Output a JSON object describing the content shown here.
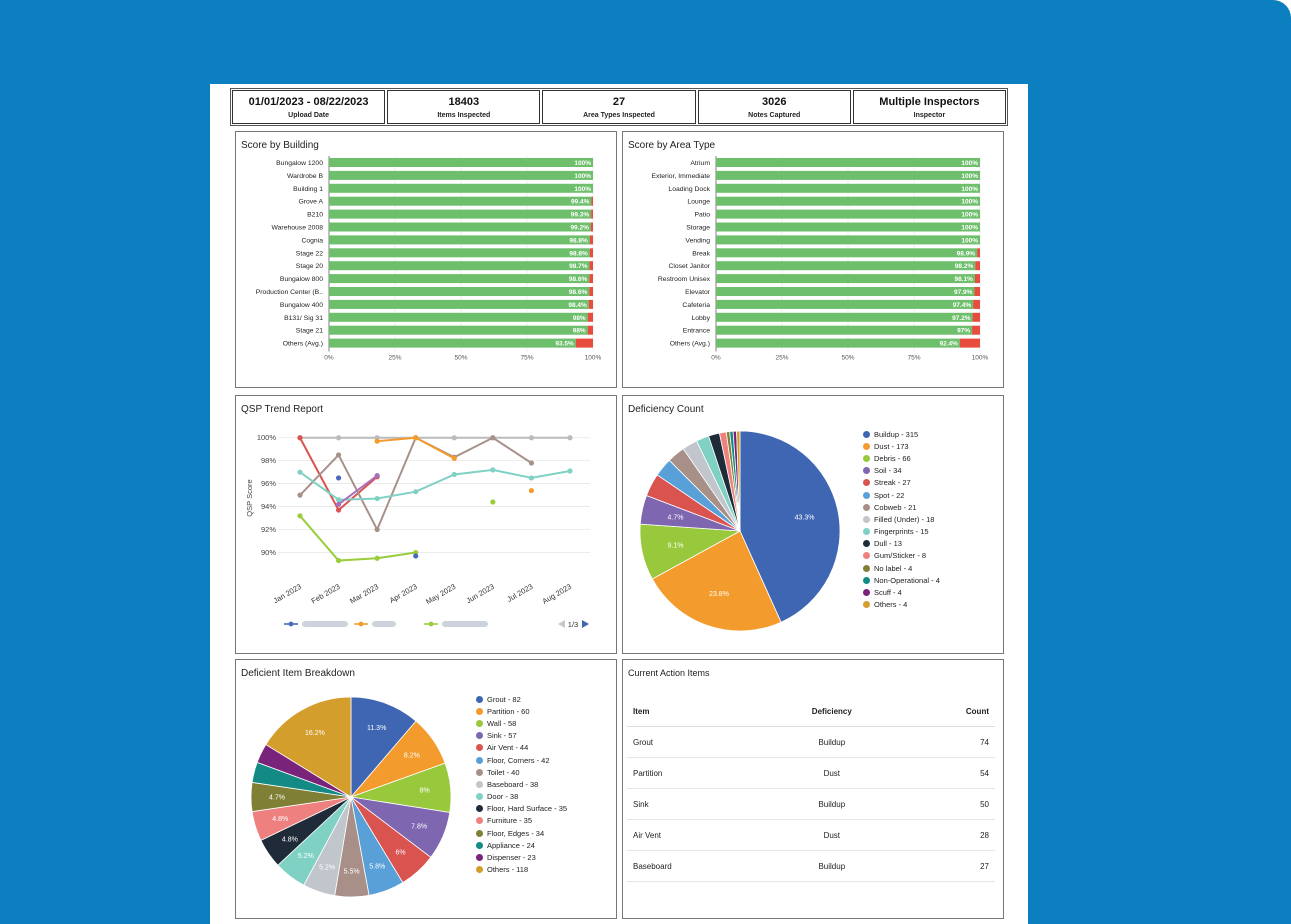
{
  "kpis": [
    {
      "value": "01/01/2023 - 08/22/2023",
      "label": "Upload Date"
    },
    {
      "value": "18403",
      "label": "Items Inspected"
    },
    {
      "value": "27",
      "label": "Area Types Inspected"
    },
    {
      "value": "3026",
      "label": "Notes Captured"
    },
    {
      "value": "Multiple Inspectors",
      "label": "Inspector"
    }
  ],
  "panels": {
    "building": "Score by Building",
    "area": "Score by Area Type",
    "trend": "QSP Trend Report",
    "deficiency": "Deficiency Count",
    "item": "Deficient Item Breakdown",
    "actions": "Current Action Items"
  },
  "colors": {
    "good": "#6dbf6b",
    "bad": "#e74c3c",
    "background": "#0b7fbf"
  },
  "pager": {
    "text": "1/3"
  },
  "chart_data": [
    {
      "type": "bar",
      "title": "Score by Building",
      "categories": [
        "Bungalow 1200",
        "Wardrobe B",
        "Building 1",
        "Grove A",
        "B210",
        "Warehouse 2008",
        "Cognia",
        "Stage 22",
        "Stage 20",
        "Bungalow 800",
        "Production Center (B..",
        "Bungalow 400",
        "B131/ Sig 31",
        "Stage 21",
        "Others (Avg.)"
      ],
      "values": [
        100,
        100,
        100,
        99.4,
        99.3,
        99.2,
        98.8,
        98.8,
        98.7,
        98.6,
        98.6,
        98.4,
        98,
        98,
        93.5
      ],
      "labels": [
        "100%",
        "100%",
        "100%",
        "99.4%",
        "99.3%",
        "99.2%",
        "98.8%",
        "98.8%",
        "98.7%",
        "98.6%",
        "98.6%",
        "98.4%",
        "98%",
        "98%",
        "93.5%"
      ],
      "xticks": [
        "0%",
        "25%",
        "50%",
        "75%",
        "100%"
      ],
      "xlim": [
        0,
        100
      ]
    },
    {
      "type": "bar",
      "title": "Score by Area Type",
      "categories": [
        "Atrium",
        "Exterior, Immediate",
        "Loading Dock",
        "Lounge",
        "Patio",
        "Storage",
        "Vending",
        "Break",
        "Closet Janitor",
        "Restroom Unisex",
        "Elevator",
        "Cafeteria",
        "Lobby",
        "Entrance",
        "Others (Avg.)"
      ],
      "values": [
        100,
        100,
        100,
        100,
        100,
        100,
        100,
        98.9,
        98.2,
        98.1,
        97.9,
        97.4,
        97.2,
        97,
        92.4
      ],
      "labels": [
        "100%",
        "100%",
        "100%",
        "100%",
        "100%",
        "100%",
        "100%",
        "98.9%",
        "98.2%",
        "98.1%",
        "97.9%",
        "97.4%",
        "97.2%",
        "97%",
        "92.4%"
      ],
      "xticks": [
        "0%",
        "25%",
        "50%",
        "75%",
        "100%"
      ],
      "xlim": [
        0,
        100
      ]
    },
    {
      "type": "line",
      "title": "QSP Trend Report",
      "ylabel": "QSP Score",
      "categories": [
        "Jan 2023",
        "Feb 2023",
        "Mar 2023",
        "Apr 2023",
        "May 2023",
        "Jun 2023",
        "Jul 2023",
        "Aug 2023"
      ],
      "yticks": [
        "100%",
        "98%",
        "96%",
        "94%",
        "92%",
        "90%"
      ],
      "ylim": [
        89,
        100.5
      ],
      "series": [
        {
          "color": "#bbbbbb",
          "values": [
            100,
            100,
            100,
            100,
            100,
            100,
            100,
            100
          ]
        },
        {
          "color": "#d9534f",
          "values": [
            100,
            93.7,
            96.6,
            null,
            null,
            null,
            null,
            null
          ]
        },
        {
          "color": "#a8918a",
          "values": [
            95,
            98.5,
            92,
            100,
            98.3,
            100,
            97.8,
            null
          ]
        },
        {
          "color": "#7fd1c4",
          "values": [
            97,
            94.6,
            94.7,
            95.3,
            96.8,
            97.2,
            96.5,
            97.1
          ]
        },
        {
          "color": "#f39c2d",
          "values": [
            null,
            null,
            99.7,
            100,
            98.2,
            null,
            95.4,
            null
          ]
        },
        {
          "color": "#9acd3d",
          "values": [
            93.2,
            89.3,
            89.5,
            90,
            null,
            94.4,
            null,
            null
          ]
        },
        {
          "color": "#4a69bd",
          "values": [
            null,
            96.5,
            null,
            89.7,
            null,
            null,
            null,
            null
          ]
        },
        {
          "color": "#a86fbd",
          "values": [
            null,
            94.2,
            96.7,
            null,
            null,
            null,
            null,
            null
          ]
        }
      ]
    },
    {
      "type": "pie",
      "title": "Deficiency Count",
      "categories": [
        "Buildup - 315",
        "Dust - 173",
        "Debris - 66",
        "Soil - 34",
        "Streak - 27",
        "Spot - 22",
        "Cobweb - 21",
        "Filled (Under) - 18",
        "Fingerprints - 15",
        "Dull - 13",
        "Gum/Sticker - 8",
        "No label - 4",
        "Non-Operational - 4",
        "Scuff - 4",
        "Others - 4"
      ],
      "values": [
        315,
        173,
        66,
        34,
        27,
        22,
        21,
        18,
        15,
        13,
        8,
        4,
        4,
        4,
        4
      ],
      "colors": [
        "#3f66b3",
        "#f39c2d",
        "#98c93c",
        "#7e66b0",
        "#d9534f",
        "#5aa0d8",
        "#a89088",
        "#c0c6cc",
        "#7fd1c4",
        "#1f2b38",
        "#ee8080",
        "#7f8035",
        "#138a84",
        "#7a237a",
        "#d39e2b"
      ],
      "data_labels": [
        "43.3%",
        "23.8%",
        "9.1%",
        "4.7%",
        "",
        "",
        "",
        "",
        "",
        "",
        "",
        "",
        "",
        "",
        ""
      ]
    },
    {
      "type": "pie",
      "title": "Deficient Item Breakdown",
      "categories": [
        "Grout - 82",
        "Partition - 60",
        "Wall - 58",
        "Sink - 57",
        "Air Vent - 44",
        "Floor, Corners - 42",
        "Toilet - 40",
        "Baseboard - 38",
        "Door - 38",
        "Floor, Hard Surface - 35",
        "Furniture - 35",
        "Floor, Edges - 34",
        "Appliance - 24",
        "Dispenser - 23",
        "Others - 118"
      ],
      "values": [
        82,
        60,
        58,
        57,
        44,
        42,
        40,
        38,
        38,
        35,
        35,
        34,
        24,
        23,
        118
      ],
      "colors": [
        "#3f66b3",
        "#f39c2d",
        "#98c93c",
        "#7e66b0",
        "#d9534f",
        "#5aa0d8",
        "#a89088",
        "#c0c6cc",
        "#7fd1c4",
        "#1f2b38",
        "#ee8080",
        "#7f8035",
        "#138a84",
        "#7a237a",
        "#d39e2b"
      ],
      "data_labels": [
        "11.3%",
        "8.2%",
        "8%",
        "7.8%",
        "6%",
        "5.8%",
        "5.5%",
        "5.2%",
        "5.2%",
        "4.8%",
        "4.8%",
        "4.7%",
        "",
        "",
        "16.2%"
      ]
    }
  ],
  "actions": {
    "headers": [
      "Item",
      "Deficiency",
      "Count"
    ],
    "rows": [
      [
        "Grout",
        "Buildup",
        "74"
      ],
      [
        "Partition",
        "Dust",
        "54"
      ],
      [
        "Sink",
        "Buildup",
        "50"
      ],
      [
        "Air Vent",
        "Dust",
        "28"
      ],
      [
        "Baseboard",
        "Buildup",
        "27"
      ]
    ]
  }
}
